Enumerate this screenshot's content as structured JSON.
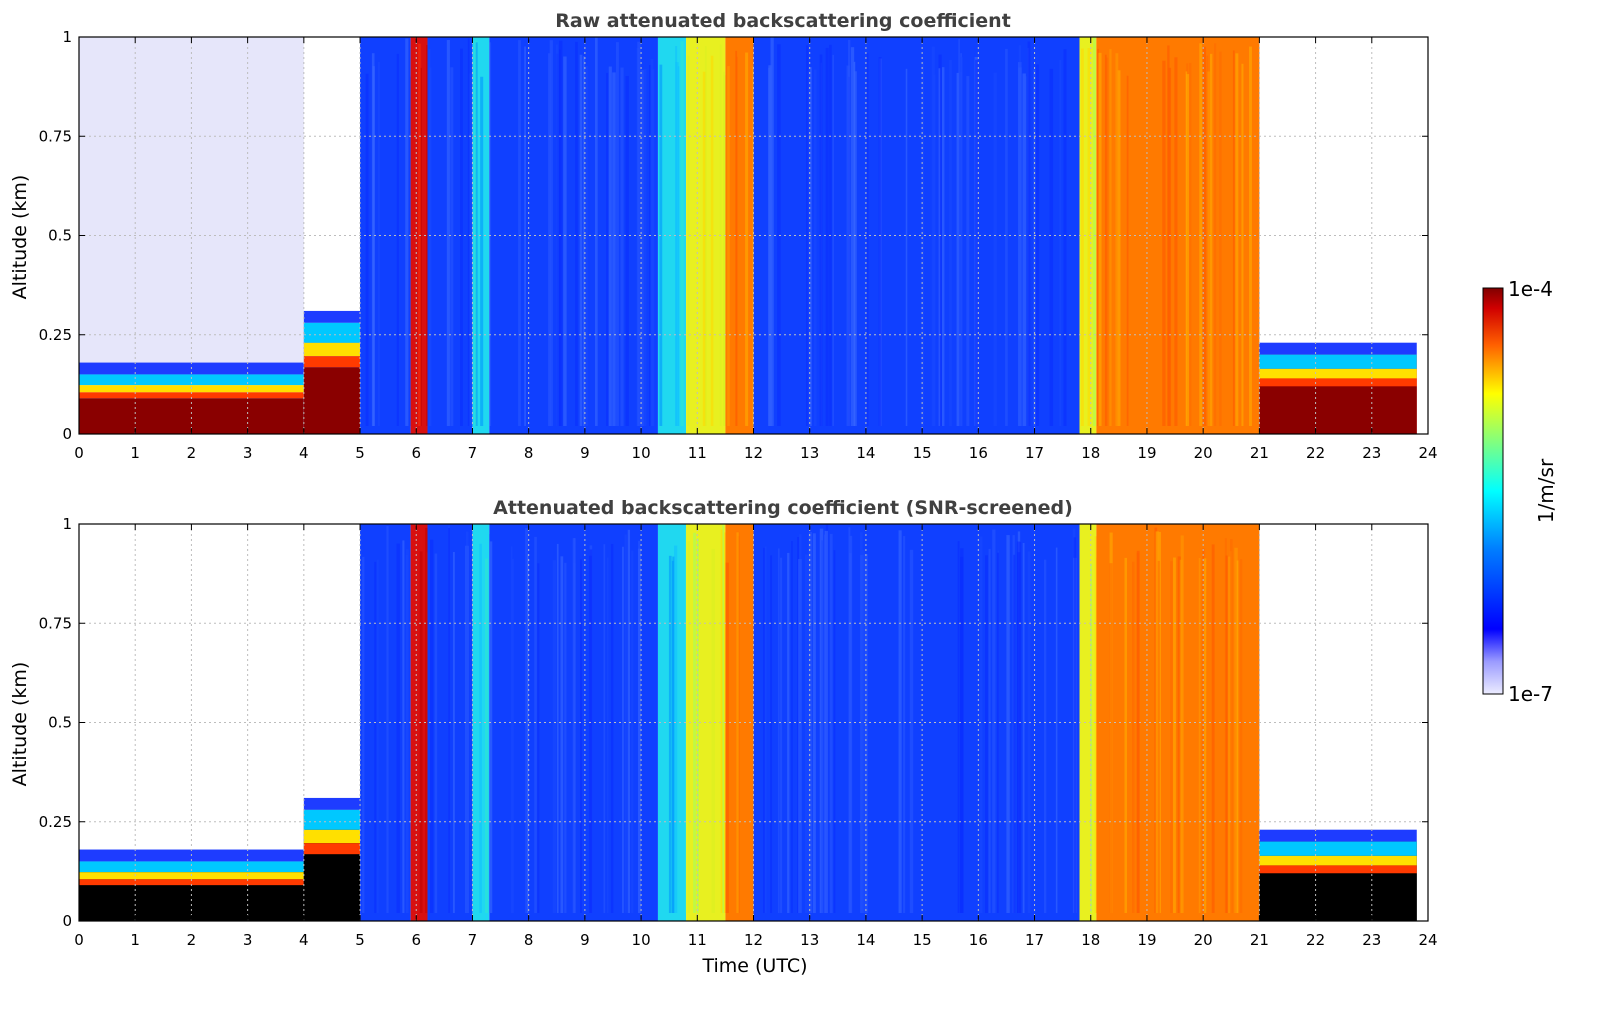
{
  "figure": {
    "colorbar": {
      "label": "1/m/sr",
      "max_label": "1e-4",
      "min_label": "1e-7",
      "scale": "log",
      "range": [
        1e-07,
        0.0001
      ],
      "colormap": "jet"
    },
    "xlabel": "Time (UTC)",
    "ylabel": "Altitude (km)"
  },
  "chart_data": [
    {
      "type": "heatmap",
      "title": "Raw attenuated backscattering coefficient",
      "xlabel": "",
      "ylabel": "Altitude (km)",
      "xlim": [
        0,
        24
      ],
      "ylim": [
        0,
        1
      ],
      "grid": true,
      "xticks": [
        "0",
        "1",
        "2",
        "3",
        "4",
        "5",
        "6",
        "7",
        "8",
        "9",
        "10",
        "11",
        "12",
        "13",
        "14",
        "15",
        "16",
        "17",
        "18",
        "19",
        "20",
        "21",
        "22",
        "23",
        "24"
      ],
      "yticks": [
        "0",
        "0.25",
        "0.5",
        "0.75",
        "1"
      ],
      "columns": [
        {
          "x0": 0.0,
          "x1": 4.0,
          "top": 0.15,
          "noise": "lavender"
        },
        {
          "x0": 4.0,
          "x1": 5.0,
          "top": 0.28,
          "noise": "mixed"
        },
        {
          "x0": 5.0,
          "x1": 5.9,
          "top": 1.0,
          "noise": "blue"
        },
        {
          "x0": 5.9,
          "x1": 6.2,
          "top": 1.0,
          "noise": "red"
        },
        {
          "x0": 6.2,
          "x1": 7.0,
          "top": 1.0,
          "noise": "blue"
        },
        {
          "x0": 7.0,
          "x1": 7.3,
          "top": 1.0,
          "noise": "cyan"
        },
        {
          "x0": 7.3,
          "x1": 10.3,
          "top": 1.0,
          "noise": "blue"
        },
        {
          "x0": 10.3,
          "x1": 10.8,
          "top": 1.0,
          "noise": "cyan"
        },
        {
          "x0": 10.8,
          "x1": 11.5,
          "top": 1.0,
          "noise": "yellow"
        },
        {
          "x0": 11.5,
          "x1": 12.0,
          "top": 1.0,
          "noise": "orange"
        },
        {
          "x0": 12.0,
          "x1": 17.8,
          "top": 1.0,
          "noise": "blue"
        },
        {
          "x0": 17.8,
          "x1": 18.1,
          "top": 1.0,
          "noise": "yellow"
        },
        {
          "x0": 18.1,
          "x1": 21.0,
          "top": 1.0,
          "noise": "orange"
        },
        {
          "x0": 21.0,
          "x1": 23.8,
          "top": 0.2,
          "noise": "red"
        }
      ]
    },
    {
      "type": "heatmap",
      "title": "Attenuated backscattering coefficient (SNR-screened)",
      "xlabel": "Time (UTC)",
      "ylabel": "Altitude (km)",
      "xlim": [
        0,
        24
      ],
      "ylim": [
        0,
        1
      ],
      "grid": true,
      "xticks": [
        "0",
        "1",
        "2",
        "3",
        "4",
        "5",
        "6",
        "7",
        "8",
        "9",
        "10",
        "11",
        "12",
        "13",
        "14",
        "15",
        "16",
        "17",
        "18",
        "19",
        "20",
        "21",
        "22",
        "23",
        "24"
      ],
      "yticks": [
        "0",
        "0.25",
        "0.5",
        "0.75",
        "1"
      ],
      "columns": [
        {
          "x0": 0.0,
          "x1": 4.0,
          "top": 0.15,
          "noise": "black"
        },
        {
          "x0": 4.0,
          "x1": 5.0,
          "top": 0.28,
          "noise": "black"
        },
        {
          "x0": 5.0,
          "x1": 5.9,
          "top": 1.0,
          "noise": "blue"
        },
        {
          "x0": 5.9,
          "x1": 6.2,
          "top": 1.0,
          "noise": "red"
        },
        {
          "x0": 6.2,
          "x1": 7.0,
          "top": 1.0,
          "noise": "blue"
        },
        {
          "x0": 7.0,
          "x1": 7.3,
          "top": 1.0,
          "noise": "cyan"
        },
        {
          "x0": 7.3,
          "x1": 10.3,
          "top": 1.0,
          "noise": "blue"
        },
        {
          "x0": 10.3,
          "x1": 10.8,
          "top": 1.0,
          "noise": "cyan"
        },
        {
          "x0": 10.8,
          "x1": 11.5,
          "top": 1.0,
          "noise": "yellow"
        },
        {
          "x0": 11.5,
          "x1": 12.0,
          "top": 1.0,
          "noise": "orange"
        },
        {
          "x0": 12.0,
          "x1": 17.8,
          "top": 1.0,
          "noise": "blue"
        },
        {
          "x0": 17.8,
          "x1": 18.1,
          "top": 1.0,
          "noise": "yellow"
        },
        {
          "x0": 18.1,
          "x1": 21.0,
          "top": 1.0,
          "noise": "orange"
        },
        {
          "x0": 21.0,
          "x1": 23.8,
          "top": 0.2,
          "noise": "black"
        }
      ]
    }
  ]
}
